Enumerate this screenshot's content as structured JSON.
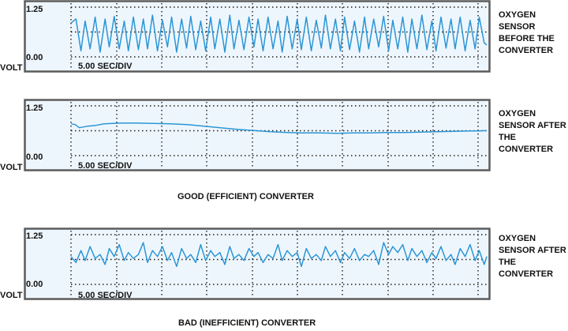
{
  "caption_good": "GOOD (EFFICIENT) CONVERTER",
  "caption_bad": "BAD (INEFFICIENT) CONVERTER",
  "chart_data": [
    {
      "type": "line",
      "title": "OXYGEN SENSOR BEFORE THE CONVERTER",
      "ylabel": "VOLT",
      "xlabel": "5.00 SEC/DIV",
      "yticks": [
        "1.25",
        "0.00"
      ],
      "ylim": [
        0,
        1.25
      ],
      "xlim": [
        0,
        50
      ],
      "grid": true,
      "series": [
        {
          "name": "",
          "x": [
            0,
            0.6,
            1.2,
            1.7,
            2.3,
            2.9,
            3.5,
            4.1,
            4.6,
            5.2,
            5.8,
            6.4,
            6.9,
            7.5,
            8.1,
            8.7,
            9.2,
            9.8,
            10.4,
            11,
            11.6,
            12.1,
            12.7,
            13.3,
            13.9,
            14.4,
            15,
            15.6,
            16.2,
            16.8,
            17.3,
            17.9,
            18.5,
            19.1,
            19.6,
            20.2,
            20.8,
            21.4,
            22,
            22.5,
            23.1,
            23.7,
            24.3,
            24.9,
            25.4,
            26,
            26.6,
            27.2,
            27.7,
            28.3,
            28.9,
            29.5,
            30.1,
            30.6,
            31.2,
            31.8,
            32.4,
            32.9,
            33.5,
            34.1,
            34.7,
            35.3,
            35.8,
            36.4,
            37,
            37.6,
            38.2,
            38.7,
            39.3,
            39.9,
            40.5,
            41,
            41.6,
            42.2,
            42.8,
            43.4,
            43.9,
            44.5,
            45.1,
            45.7,
            46.2,
            46.8,
            47.4,
            48,
            48.6,
            49.1,
            49.7,
            50
          ],
          "values": [
            0.85,
            0.95,
            0.15,
            0.9,
            0.2,
            1.0,
            0.12,
            0.95,
            0.25,
            1.02,
            0.2,
            0.9,
            0.15,
            1.0,
            0.18,
            0.95,
            0.2,
            1.05,
            0.15,
            0.92,
            0.25,
            1.0,
            0.12,
            0.95,
            0.22,
            1.02,
            0.18,
            0.9,
            0.15,
            1.0,
            0.2,
            0.95,
            0.12,
            1.05,
            0.2,
            0.92,
            0.18,
            1.0,
            0.25,
            0.95,
            0.15,
            1.0,
            0.2,
            0.9,
            0.12,
            1.02,
            0.2,
            0.95,
            0.18,
            1.0,
            0.15,
            0.92,
            0.22,
            1.05,
            0.2,
            0.95,
            0.15,
            1.0,
            0.18,
            0.9,
            0.12,
            1.0,
            0.2,
            0.95,
            0.25,
            1.02,
            0.15,
            0.92,
            0.2,
            1.0,
            0.12,
            0.95,
            0.2,
            1.05,
            0.18,
            0.9,
            0.15,
            1.0,
            0.22,
            0.95,
            0.2,
            1.0,
            0.15,
            0.92,
            0.2,
            1.0,
            0.35,
            0.3
          ]
        }
      ]
    },
    {
      "type": "line",
      "title": "OXYGEN SENSOR AFTER THE CONVERTER",
      "ylabel": "VOLT",
      "xlabel": "5.00 SEC/DIV",
      "yticks": [
        "1.25",
        "0.00"
      ],
      "ylim": [
        0,
        1.25
      ],
      "xlim": [
        0,
        50
      ],
      "grid": true,
      "series": [
        {
          "name": "",
          "x": [
            0,
            0.5,
            1,
            2,
            3,
            4,
            6,
            8,
            10,
            12,
            14,
            16,
            18,
            20,
            22,
            24,
            26,
            28,
            30,
            32,
            34,
            36,
            38,
            40,
            42,
            44,
            46,
            48,
            49,
            50
          ],
          "values": [
            0.8,
            0.78,
            0.7,
            0.74,
            0.76,
            0.8,
            0.82,
            0.82,
            0.81,
            0.8,
            0.78,
            0.74,
            0.7,
            0.66,
            0.63,
            0.6,
            0.58,
            0.57,
            0.57,
            0.56,
            0.57,
            0.57,
            0.58,
            0.58,
            0.59,
            0.6,
            0.61,
            0.62,
            0.62,
            0.63
          ]
        }
      ]
    },
    {
      "type": "line",
      "title": "OXYGEN SENSOR AFTER THE CONVERTER",
      "ylabel": "VOLT",
      "xlabel": "5.00 SEC/DIV",
      "yticks": [
        "1.25",
        "0.00"
      ],
      "ylim": [
        0,
        1.25
      ],
      "xlim": [
        0,
        50
      ],
      "grid": true,
      "series": [
        {
          "name": "",
          "x": [
            0,
            0.6,
            1.2,
            1.7,
            2.3,
            2.9,
            3.5,
            4.1,
            4.6,
            5.2,
            5.8,
            6.4,
            6.9,
            7.5,
            8.1,
            8.7,
            9.2,
            9.8,
            10.4,
            11,
            11.6,
            12.1,
            12.7,
            13.3,
            13.9,
            14.4,
            15,
            15.6,
            16.2,
            16.8,
            17.3,
            17.9,
            18.5,
            19.1,
            19.6,
            20.2,
            20.8,
            21.4,
            22,
            22.5,
            23.1,
            23.7,
            24.3,
            24.9,
            25.4,
            26,
            26.6,
            27.2,
            27.7,
            28.3,
            28.9,
            29.5,
            30.1,
            30.6,
            31.2,
            31.8,
            32.4,
            32.9,
            33.5,
            34.1,
            34.7,
            35.3,
            35.8,
            36.4,
            37,
            37.6,
            38.2,
            38.7,
            39.3,
            39.9,
            40.5,
            41,
            41.6,
            42.2,
            42.8,
            43.4,
            43.9,
            44.5,
            45.1,
            45.7,
            46.2,
            46.8,
            47.4,
            48,
            48.6,
            49.1,
            49.7,
            50
          ],
          "values": [
            0.7,
            0.55,
            0.85,
            0.6,
            0.95,
            0.65,
            0.75,
            0.5,
            0.9,
            0.7,
            1.0,
            0.6,
            0.8,
            0.65,
            0.75,
            1.05,
            0.55,
            0.85,
            0.7,
            0.95,
            0.6,
            0.8,
            0.45,
            0.9,
            0.65,
            0.75,
            0.55,
            1.0,
            0.6,
            0.85,
            0.7,
            0.8,
            0.5,
            0.95,
            0.65,
            0.75,
            0.6,
            0.9,
            0.7,
            0.8,
            0.55,
            0.75,
            0.65,
            1.0,
            0.6,
            0.85,
            0.7,
            0.8,
            0.45,
            0.9,
            0.65,
            0.75,
            0.6,
            0.95,
            0.7,
            0.85,
            0.55,
            0.8,
            0.65,
            0.9,
            0.6,
            0.75,
            0.7,
            0.85,
            0.5,
            1.05,
            0.75,
            0.95,
            0.8,
            1.0,
            0.6,
            0.9,
            0.7,
            0.85,
            0.55,
            0.8,
            0.65,
            0.95,
            0.6,
            0.75,
            0.5,
            0.9,
            0.7,
            1.0,
            0.6,
            0.85,
            0.5,
            0.7
          ]
        }
      ]
    }
  ]
}
